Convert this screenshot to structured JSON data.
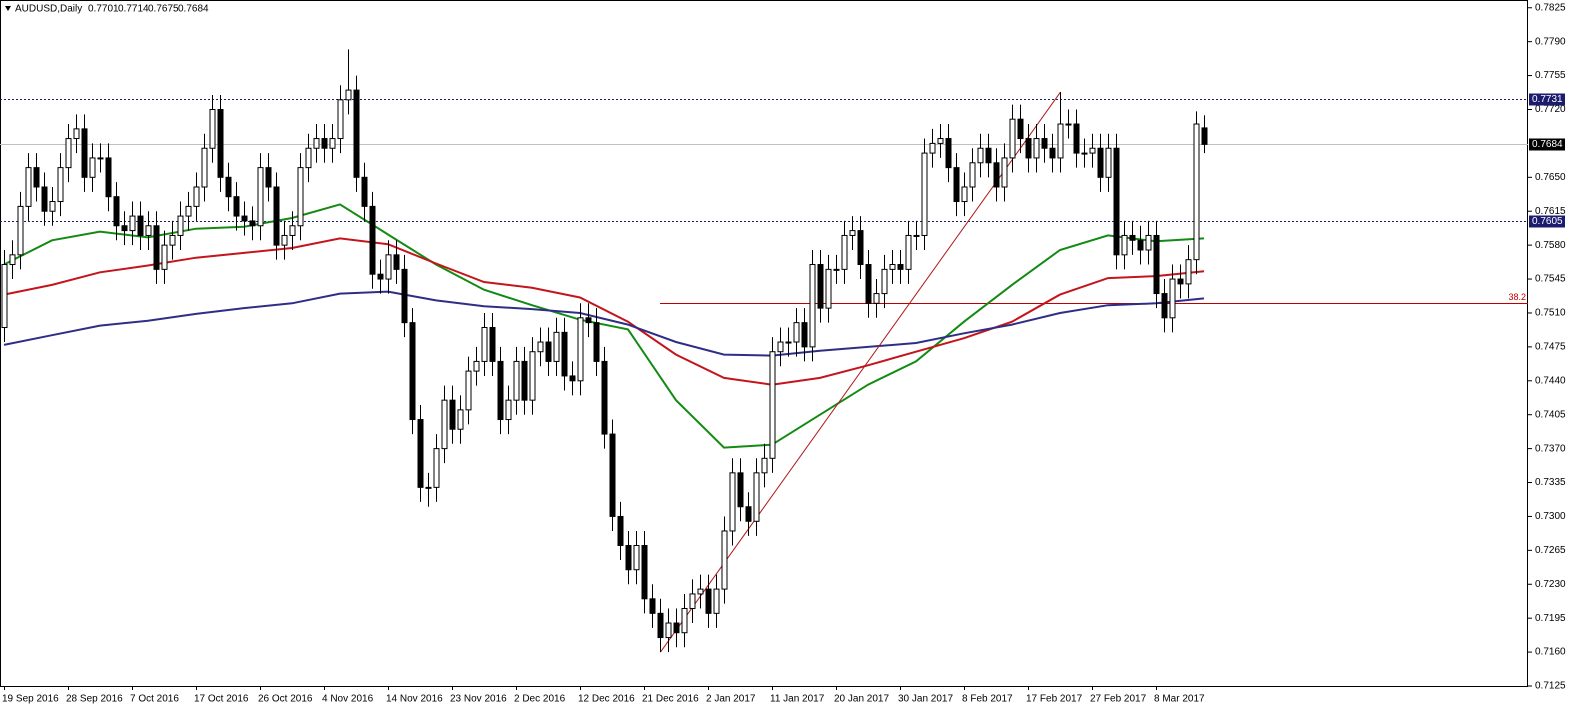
{
  "chart_data": {
    "type": "candlestick",
    "title": "AUDUSD,Daily",
    "categories": [
      "19 Sep 2016",
      null,
      null,
      null,
      null,
      null,
      null,
      null,
      "28 Sep 2016",
      null,
      null,
      null,
      null,
      null,
      null,
      null,
      "7 Oct 2016",
      null,
      null,
      null,
      null,
      null,
      null,
      null,
      "17 Oct 2016",
      null,
      null,
      null,
      null,
      null,
      null,
      null,
      "26 Oct 2016",
      null,
      null,
      null,
      null,
      null,
      null,
      null,
      "4 Nov 2016",
      null,
      null,
      null,
      null,
      null,
      null,
      null,
      "14 Nov 2016",
      null,
      null,
      null,
      null,
      null,
      null,
      null,
      "23 Nov 2016",
      null,
      null,
      null,
      null,
      null,
      null,
      null,
      "2 Dec 2016",
      null,
      null,
      null,
      null,
      null,
      null,
      null,
      "12 Dec 2016",
      null,
      null,
      null,
      null,
      null,
      null,
      null,
      "21 Dec 2016",
      null,
      null,
      null,
      null,
      null,
      null,
      null,
      "2 Jan 2017",
      null,
      null,
      null,
      null,
      null,
      null,
      null,
      "11 Jan 2017",
      null,
      null,
      null,
      null,
      null,
      null,
      null,
      "20 Jan 2017",
      null,
      null,
      null,
      null,
      null,
      null,
      null,
      "30 Jan 2017",
      null,
      null,
      null,
      null,
      null,
      null,
      null,
      "8 Feb 2017",
      null,
      null,
      null,
      null,
      null,
      null,
      null,
      "17 Feb 2017",
      null,
      null,
      null,
      null,
      null,
      null,
      null,
      "27 Feb 2017",
      null,
      null,
      null,
      null,
      null,
      null,
      null,
      "8 Mar 2017",
      null,
      null,
      null,
      null,
      null,
      null
    ],
    "open": [
      0.7495,
      0.756,
      0.757,
      0.762,
      0.766,
      0.764,
      0.7615,
      0.7625,
      0.766,
      0.769,
      0.77,
      0.765,
      0.767,
      0.767,
      0.763,
      0.76,
      0.7595,
      0.761,
      0.759,
      0.76,
      0.7555,
      0.758,
      0.759,
      0.761,
      0.762,
      0.764,
      0.768,
      0.772,
      0.765,
      0.763,
      0.761,
      0.7605,
      0.76,
      0.766,
      0.764,
      0.758,
      0.759,
      0.76,
      0.766,
      0.768,
      0.769,
      0.768,
      0.769,
      0.773,
      0.774,
      0.765,
      0.762,
      0.755,
      0.7545,
      0.757,
      0.7555,
      0.75,
      0.74,
      0.733,
      0.733,
      0.737,
      0.742,
      0.739,
      0.741,
      0.745,
      0.746,
      0.7495,
      0.746,
      0.74,
      0.742,
      0.746,
      0.742,
      0.747,
      0.748,
      0.746,
      0.749,
      0.7445,
      0.744,
      0.7505,
      0.75,
      0.746,
      0.7385,
      0.73,
      0.727,
      0.7245,
      0.727,
      0.7215,
      0.72,
      0.7175,
      0.719,
      0.718,
      0.7205,
      0.722,
      0.7225,
      0.72,
      0.7225,
      0.7285,
      0.7345,
      0.731,
      0.7295,
      0.7345,
      0.736,
      0.747,
      0.748,
      0.748,
      0.75,
      0.7475,
      0.756,
      0.7515,
      0.7555,
      0.7555,
      0.759,
      0.7595,
      0.756,
      0.752,
      0.753,
      0.7555,
      0.756,
      0.7555,
      0.759,
      0.759,
      0.7675,
      0.7685,
      0.769,
      0.766,
      0.7625,
      0.764,
      0.7665,
      0.768,
      0.7665,
      0.764,
      0.767,
      0.771,
      0.769,
      0.767,
      0.769,
      0.768,
      0.767,
      0.7705,
      0.7705,
      0.7675,
      0.7675,
      0.768,
      0.765,
      0.768,
      0.757,
      0.759,
      0.7585,
      0.7575,
      0.759,
      0.753,
      0.7505,
      0.7545,
      0.754,
      0.7565,
      0.7701
    ],
    "high": [
      0.7575,
      0.7585,
      0.7635,
      0.7675,
      0.7675,
      0.7655,
      0.764,
      0.7675,
      0.7705,
      0.7715,
      0.7715,
      0.7685,
      0.7685,
      0.7685,
      0.7645,
      0.7615,
      0.7625,
      0.7625,
      0.7615,
      0.7615,
      0.7595,
      0.7605,
      0.7625,
      0.7635,
      0.7655,
      0.7695,
      0.7735,
      0.7735,
      0.7665,
      0.7645,
      0.7625,
      0.762,
      0.7675,
      0.7675,
      0.7655,
      0.7605,
      0.7615,
      0.7675,
      0.7695,
      0.7705,
      0.7705,
      0.7705,
      0.7745,
      0.7782,
      0.7755,
      0.7665,
      0.7635,
      0.7565,
      0.7585,
      0.7585,
      0.757,
      0.7515,
      0.7415,
      0.7345,
      0.7385,
      0.7435,
      0.7435,
      0.7425,
      0.7465,
      0.7475,
      0.751,
      0.751,
      0.7475,
      0.7435,
      0.7475,
      0.7475,
      0.7485,
      0.7495,
      0.7495,
      0.7505,
      0.7505,
      0.746,
      0.752,
      0.752,
      0.7515,
      0.7475,
      0.74,
      0.7315,
      0.7285,
      0.7285,
      0.7285,
      0.723,
      0.7215,
      0.7205,
      0.7205,
      0.722,
      0.7235,
      0.724,
      0.724,
      0.724,
      0.73,
      0.736,
      0.736,
      0.7325,
      0.736,
      0.7375,
      0.7485,
      0.7495,
      0.7495,
      0.7515,
      0.7515,
      0.7575,
      0.7575,
      0.757,
      0.757,
      0.7605,
      0.761,
      0.761,
      0.7575,
      0.7545,
      0.757,
      0.7575,
      0.7575,
      0.7605,
      0.7605,
      0.769,
      0.77,
      0.7705,
      0.7705,
      0.7675,
      0.7655,
      0.768,
      0.7695,
      0.7695,
      0.768,
      0.7685,
      0.7725,
      0.7725,
      0.7705,
      0.7705,
      0.7705,
      0.7695,
      0.7738,
      0.772,
      0.772,
      0.769,
      0.7695,
      0.7695,
      0.7695,
      0.7695,
      0.7605,
      0.7605,
      0.76,
      0.7605,
      0.7605,
      0.7545,
      0.756,
      0.756,
      0.758,
      0.7718,
      0.7714
    ],
    "low": [
      0.748,
      0.7545,
      0.7555,
      0.7605,
      0.7625,
      0.76,
      0.76,
      0.761,
      0.7645,
      0.7675,
      0.7635,
      0.7635,
      0.7655,
      0.7615,
      0.7585,
      0.758,
      0.758,
      0.7575,
      0.7575,
      0.754,
      0.754,
      0.7565,
      0.7575,
      0.7595,
      0.7605,
      0.7625,
      0.7665,
      0.7635,
      0.7615,
      0.7595,
      0.759,
      0.7585,
      0.7585,
      0.7625,
      0.7565,
      0.7565,
      0.7575,
      0.7585,
      0.7645,
      0.7665,
      0.7665,
      0.7665,
      0.7675,
      0.7715,
      0.7635,
      0.7605,
      0.7535,
      0.753,
      0.753,
      0.754,
      0.7485,
      0.7385,
      0.7315,
      0.731,
      0.7315,
      0.7355,
      0.7375,
      0.7375,
      0.7395,
      0.7435,
      0.7445,
      0.7445,
      0.7385,
      0.7385,
      0.7405,
      0.7405,
      0.7405,
      0.7455,
      0.7445,
      0.7445,
      0.743,
      0.7425,
      0.7425,
      0.7485,
      0.7445,
      0.737,
      0.7285,
      0.7255,
      0.723,
      0.723,
      0.72,
      0.7185,
      0.716,
      0.716,
      0.7165,
      0.7165,
      0.719,
      0.7205,
      0.7185,
      0.7185,
      0.721,
      0.727,
      0.7295,
      0.728,
      0.728,
      0.733,
      0.7345,
      0.7455,
      0.7465,
      0.7465,
      0.746,
      0.746,
      0.75,
      0.75,
      0.754,
      0.754,
      0.7575,
      0.7545,
      0.7505,
      0.7505,
      0.7515,
      0.754,
      0.754,
      0.754,
      0.7575,
      0.7575,
      0.766,
      0.767,
      0.7645,
      0.761,
      0.761,
      0.7625,
      0.765,
      0.765,
      0.7625,
      0.7625,
      0.7655,
      0.7675,
      0.7655,
      0.7655,
      0.7665,
      0.7655,
      0.7655,
      0.769,
      0.766,
      0.766,
      0.766,
      0.7635,
      0.7635,
      0.7555,
      0.7555,
      0.757,
      0.756,
      0.756,
      0.7515,
      0.749,
      0.749,
      0.7525,
      0.7525,
      0.755,
      0.7675
    ],
    "close": [
      0.756,
      0.757,
      0.762,
      0.766,
      0.764,
      0.7615,
      0.7625,
      0.766,
      0.769,
      0.77,
      0.765,
      0.767,
      0.767,
      0.763,
      0.76,
      0.7595,
      0.761,
      0.759,
      0.76,
      0.7555,
      0.758,
      0.759,
      0.761,
      0.762,
      0.764,
      0.768,
      0.772,
      0.765,
      0.763,
      0.761,
      0.7605,
      0.76,
      0.766,
      0.764,
      0.758,
      0.759,
      0.76,
      0.766,
      0.768,
      0.769,
      0.768,
      0.769,
      0.773,
      0.774,
      0.765,
      0.762,
      0.755,
      0.7545,
      0.757,
      0.7555,
      0.75,
      0.74,
      0.733,
      0.733,
      0.737,
      0.742,
      0.739,
      0.741,
      0.745,
      0.746,
      0.7495,
      0.746,
      0.74,
      0.742,
      0.746,
      0.742,
      0.747,
      0.748,
      0.746,
      0.749,
      0.7445,
      0.744,
      0.7505,
      0.75,
      0.746,
      0.7385,
      0.73,
      0.727,
      0.7245,
      0.727,
      0.7215,
      0.72,
      0.7175,
      0.719,
      0.718,
      0.7205,
      0.722,
      0.7225,
      0.72,
      0.7225,
      0.7285,
      0.7345,
      0.731,
      0.7295,
      0.7345,
      0.736,
      0.747,
      0.748,
      0.748,
      0.75,
      0.7475,
      0.756,
      0.7515,
      0.7555,
      0.7555,
      0.759,
      0.7595,
      0.756,
      0.752,
      0.753,
      0.7555,
      0.756,
      0.7555,
      0.759,
      0.759,
      0.7675,
      0.7685,
      0.769,
      0.766,
      0.7625,
      0.764,
      0.7665,
      0.768,
      0.7665,
      0.764,
      0.767,
      0.771,
      0.769,
      0.767,
      0.769,
      0.768,
      0.767,
      0.7705,
      0.7705,
      0.7675,
      0.7675,
      0.768,
      0.765,
      0.768,
      0.757,
      0.759,
      0.7585,
      0.7575,
      0.759,
      0.753,
      0.7505,
      0.7545,
      0.754,
      0.7565,
      0.7705,
      0.7684
    ],
    "ylim": [
      0.7125,
      0.7833
    ],
    "yticks": [
      0.7825,
      {
        "value": 0.779,
        "label": "0.7790"
      },
      0.7755,
      {
        "value": 0.772,
        "label": "0.7720"
      },
      {
        "value": 0.765,
        "label": "0.7650"
      },
      0.7615,
      {
        "value": 0.758,
        "label": "0.7580"
      },
      0.7545,
      {
        "value": 0.751,
        "label": "0.7510"
      },
      0.7475,
      {
        "value": 0.744,
        "label": "0.7440"
      },
      0.7405,
      {
        "value": 0.737,
        "label": "0.7370"
      },
      0.7335,
      {
        "value": 0.73,
        "label": "0.7300"
      },
      0.7265,
      {
        "value": 0.723,
        "label": "0.7230"
      },
      0.7195,
      {
        "value": 0.716,
        "label": "0.7160"
      },
      0.7125
    ],
    "indicators": [
      {
        "color": "#138a13",
        "x": [
          0,
          6,
          12,
          18,
          24,
          30,
          36,
          42,
          48,
          54,
          60,
          66,
          72,
          78,
          84,
          90,
          96,
          102,
          108,
          114,
          120,
          126,
          132,
          138,
          144,
          150
        ],
        "values": [
          0.756,
          0.7585,
          0.7594,
          0.7588,
          0.7597,
          0.7599,
          0.7608,
          0.7622,
          0.7591,
          0.756,
          0.7534,
          0.7518,
          0.7503,
          0.7493,
          0.742,
          0.7371,
          0.7374,
          0.7405,
          0.7436,
          0.746,
          0.7501,
          0.7539,
          0.7575,
          0.759,
          0.7584,
          0.7587
        ]
      },
      {
        "color": "#c4141c",
        "x": [
          0,
          6,
          12,
          18,
          24,
          30,
          36,
          42,
          48,
          54,
          60,
          66,
          72,
          78,
          84,
          90,
          96,
          102,
          108,
          114,
          120,
          126,
          132,
          138,
          144,
          150
        ],
        "values": [
          0.7529,
          0.7539,
          0.7552,
          0.7559,
          0.7567,
          0.7572,
          0.7577,
          0.7587,
          0.7581,
          0.7561,
          0.7542,
          0.7536,
          0.7526,
          0.7501,
          0.7467,
          0.7443,
          0.7436,
          0.7443,
          0.7456,
          0.747,
          0.7484,
          0.7501,
          0.7529,
          0.7546,
          0.7548,
          0.7553
        ]
      },
      {
        "color": "#2e2e86",
        "x": [
          0,
          6,
          12,
          18,
          24,
          30,
          36,
          42,
          48,
          54,
          60,
          66,
          72,
          78,
          84,
          90,
          96,
          102,
          108,
          114,
          120,
          126,
          132,
          138,
          144,
          150
        ],
        "values": [
          0.7477,
          0.7487,
          0.7497,
          0.7502,
          0.7509,
          0.7515,
          0.752,
          0.753,
          0.7532,
          0.7523,
          0.7517,
          0.7514,
          0.751,
          0.7498,
          0.748,
          0.7467,
          0.7466,
          0.7471,
          0.7475,
          0.7479,
          0.7489,
          0.7498,
          0.751,
          0.7518,
          0.752,
          0.7525
        ]
      }
    ],
    "levels": [
      {
        "value": 0.7731,
        "color": "#1c1c6e"
      },
      {
        "value": 0.7605,
        "color": "#1c1c6e"
      }
    ],
    "price_line_color": "#c0c0c0",
    "trendline": {
      "x": [
        82,
        132
      ],
      "y": [
        0.716,
        0.7738
      ],
      "color": "#b01818"
    },
    "fibo": {
      "level": 38.2,
      "price": 0.752,
      "color": "#c00000"
    }
  }
}
